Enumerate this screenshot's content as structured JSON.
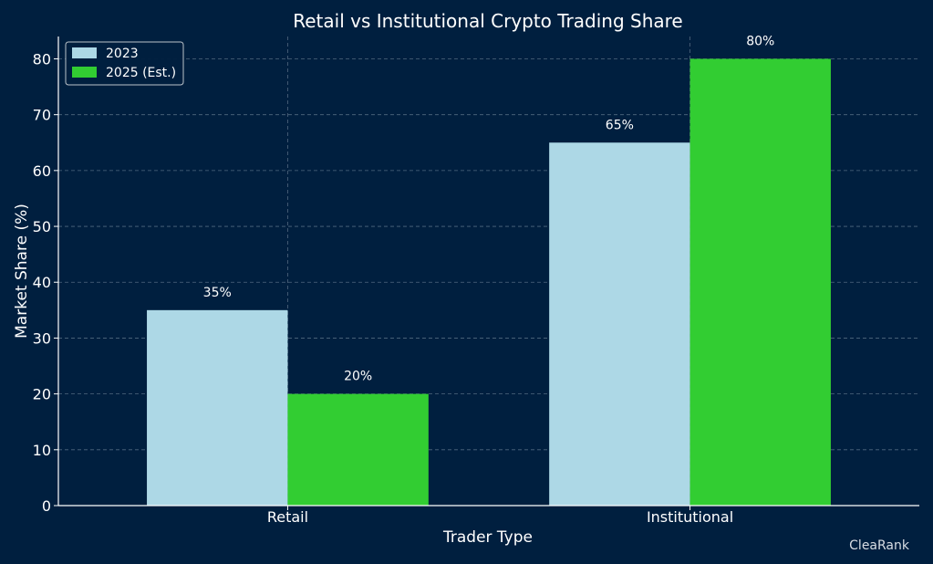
{
  "colors": {
    "background": "#001f3f",
    "text": "#ffffff",
    "grid": "#8899aa",
    "axis": "#ffffff",
    "watermark": "#d8dde3"
  },
  "watermark": "CleaRank",
  "chart_data": {
    "type": "bar",
    "title": "Retail vs Institutional Crypto Trading Share",
    "xlabel": "Trader Type",
    "ylabel": "Market Share (%)",
    "categories": [
      "Retail",
      "Institutional"
    ],
    "series": [
      {
        "name": "2023",
        "values": [
          35,
          65
        ],
        "color": "#add8e6",
        "labels": [
          "35%",
          "65%"
        ]
      },
      {
        "name": "2025 (Est.)",
        "values": [
          20,
          80
        ],
        "color": "#32cd32",
        "labels": [
          "20%",
          "80%"
        ]
      }
    ],
    "ylim": [
      0,
      84
    ],
    "yticks": [
      0,
      10,
      20,
      30,
      40,
      50,
      60,
      70,
      80
    ],
    "grid": true,
    "legend_position": "top-left"
  }
}
